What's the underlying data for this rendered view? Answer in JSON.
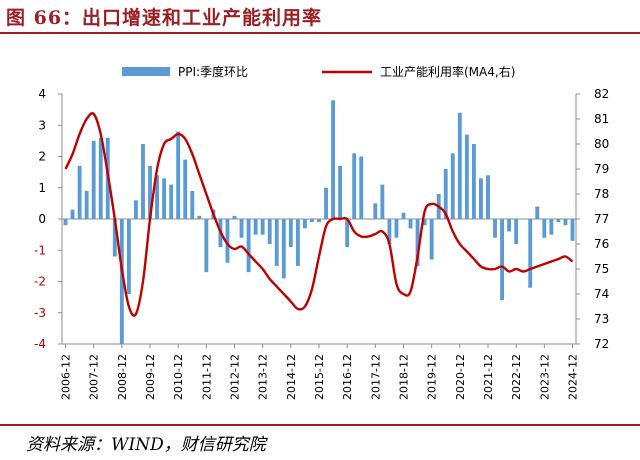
{
  "figure": {
    "title": "图 66：出口增速和工业产能利用率",
    "source": "资料来源：WIND，财信研究院"
  },
  "chart_data": {
    "type": "bar+line",
    "series": [
      {
        "name": "PPI:季度环比",
        "type": "bar",
        "axis": "left",
        "color": "#5b9bd5",
        "x": [
          "2006-12",
          "2007-03",
          "2007-06",
          "2007-09",
          "2007-12",
          "2008-03",
          "2008-06",
          "2008-09",
          "2008-12",
          "2009-03",
          "2009-06",
          "2009-09",
          "2009-12",
          "2010-03",
          "2010-06",
          "2010-09",
          "2010-12",
          "2011-03",
          "2011-06",
          "2011-09",
          "2011-12",
          "2012-03",
          "2012-06",
          "2012-09",
          "2012-12",
          "2013-03",
          "2013-06",
          "2013-09",
          "2013-12",
          "2014-03",
          "2014-06",
          "2014-09",
          "2014-12",
          "2015-03",
          "2015-06",
          "2015-09",
          "2015-12",
          "2016-03",
          "2016-06",
          "2016-09",
          "2016-12",
          "2017-03",
          "2017-06",
          "2017-09",
          "2017-12",
          "2018-03",
          "2018-06",
          "2018-09",
          "2018-12",
          "2019-03",
          "2019-06",
          "2019-09",
          "2019-12",
          "2020-03",
          "2020-06",
          "2020-09",
          "2020-12",
          "2021-03",
          "2021-06",
          "2021-09",
          "2021-12",
          "2022-03",
          "2022-06",
          "2022-09",
          "2022-12",
          "2023-03",
          "2023-06",
          "2023-09",
          "2023-12",
          "2024-03",
          "2024-06",
          "2024-09",
          "2024-12"
        ],
        "values": [
          -0.2,
          0.3,
          1.7,
          0.9,
          2.5,
          2.6,
          2.6,
          -1.2,
          -4.0,
          -2.4,
          0.6,
          2.4,
          1.7,
          1.4,
          1.3,
          1.1,
          2.8,
          1.9,
          0.9,
          0.1,
          -1.7,
          0.3,
          -0.9,
          -1.4,
          0.1,
          -0.6,
          -1.7,
          -0.5,
          -0.5,
          -0.8,
          -1.5,
          -1.9,
          -0.9,
          -1.5,
          -0.3,
          -0.1,
          -0.1,
          1.0,
          3.8,
          1.7,
          -0.9,
          2.1,
          2.0,
          0.0,
          0.5,
          1.1,
          -0.8,
          -0.6,
          0.2,
          -0.3,
          -1.5,
          -0.2,
          -1.3,
          0.8,
          1.6,
          2.1,
          3.4,
          2.7,
          2.4,
          1.3,
          1.4,
          -0.6,
          -2.6,
          -0.4,
          -0.8,
          0.0,
          -2.2,
          0.4,
          -0.6,
          -0.5,
          -0.1,
          -0.2,
          -0.7
        ]
      },
      {
        "name": "工业产能利用率(MA4,右)",
        "type": "line",
        "axis": "right",
        "color": "#c00000",
        "x": [
          "2006-12",
          "2007-03",
          "2007-06",
          "2007-09",
          "2007-12",
          "2008-03",
          "2008-06",
          "2008-09",
          "2008-12",
          "2009-03",
          "2009-06",
          "2009-09",
          "2009-12",
          "2010-03",
          "2010-06",
          "2010-09",
          "2010-12",
          "2011-03",
          "2011-06",
          "2011-09",
          "2011-12",
          "2012-03",
          "2012-06",
          "2012-09",
          "2012-12",
          "2013-03",
          "2013-06",
          "2013-09",
          "2013-12",
          "2014-03",
          "2014-06",
          "2014-09",
          "2014-12",
          "2015-03",
          "2015-06",
          "2015-09",
          "2015-12",
          "2016-03",
          "2016-06",
          "2016-09",
          "2016-12",
          "2017-03",
          "2017-06",
          "2017-09",
          "2017-12",
          "2018-03",
          "2018-06",
          "2018-09",
          "2018-12",
          "2019-03",
          "2019-06",
          "2019-09",
          "2019-12",
          "2020-03",
          "2020-06",
          "2020-09",
          "2020-12",
          "2021-03",
          "2021-06",
          "2021-09",
          "2021-12",
          "2022-03",
          "2022-06",
          "2022-09",
          "2022-12",
          "2023-03",
          "2023-06",
          "2023-09",
          "2023-12",
          "2024-03",
          "2024-06",
          "2024-09",
          "2024-12"
        ],
        "values": [
          79.0,
          79.6,
          80.4,
          81.0,
          81.2,
          80.4,
          78.8,
          77.0,
          75.0,
          73.5,
          73.2,
          74.5,
          77.0,
          79.0,
          80.0,
          80.2,
          80.4,
          80.2,
          79.6,
          78.8,
          78.0,
          77.2,
          76.5,
          76.0,
          75.8,
          75.9,
          75.6,
          75.3,
          75.0,
          74.6,
          74.3,
          74.0,
          73.7,
          73.4,
          73.5,
          74.2,
          75.5,
          76.7,
          77.0,
          77.0,
          77.0,
          76.5,
          76.3,
          76.3,
          76.4,
          76.5,
          76.0,
          74.4,
          74.0,
          74.1,
          75.5,
          77.3,
          77.6,
          77.5,
          77.2,
          76.5,
          76.0,
          75.7,
          75.4,
          75.1,
          75.0,
          75.0,
          75.1,
          74.9,
          75.0,
          74.9,
          75.0,
          75.1,
          75.2,
          75.3,
          75.4,
          75.5,
          75.3
        ]
      }
    ],
    "left_axis": {
      "ylim": [
        -4,
        4
      ],
      "ticks": [
        "-4",
        "-3",
        "-2",
        "-1",
        "0",
        "1",
        "2",
        "3",
        "4"
      ]
    },
    "right_axis": {
      "ylim": [
        72,
        82
      ],
      "ticks": [
        "72",
        "73",
        "74",
        "75",
        "76",
        "77",
        "78",
        "79",
        "80",
        "81",
        "82"
      ]
    },
    "x_tick_labels": [
      "2006-12",
      "2007-12",
      "2008-12",
      "2009-12",
      "2010-12",
      "2011-12",
      "2012-12",
      "2013-12",
      "2014-12",
      "2015-12",
      "2016-12",
      "2017-12",
      "2018-12",
      "2019-12",
      "2020-12",
      "2021-12",
      "2022-12",
      "2023-12",
      "2024-12"
    ],
    "legend_position": "top",
    "grid": false
  }
}
